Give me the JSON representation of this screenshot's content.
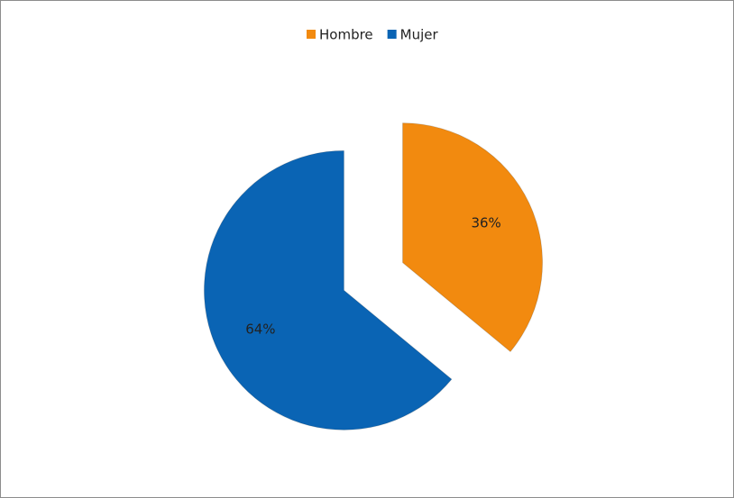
{
  "chart_data": {
    "type": "pie",
    "categories": [
      "Hombre",
      "Mujer"
    ],
    "values": [
      36,
      64
    ],
    "value_labels": [
      "36%",
      "64%"
    ],
    "colors": [
      "#f28a0f",
      "#0a64b4"
    ],
    "legend": "top"
  }
}
